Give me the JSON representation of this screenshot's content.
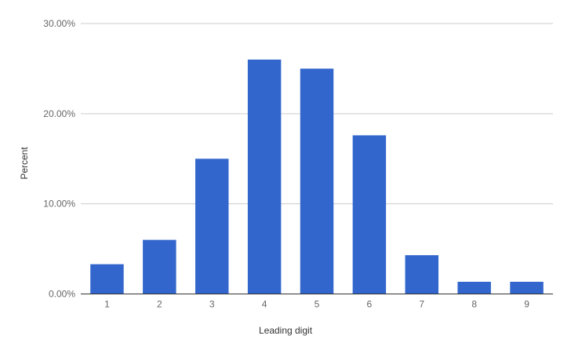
{
  "chart_data": {
    "type": "bar",
    "title": "",
    "xlabel": "Leading digit",
    "ylabel": "Percent",
    "categories": [
      "1",
      "2",
      "3",
      "4",
      "5",
      "6",
      "7",
      "8",
      "9"
    ],
    "values": [
      3.3,
      6.0,
      15.0,
      26.0,
      25.0,
      17.6,
      4.3,
      1.35,
      1.35
    ],
    "ylim": [
      0,
      30
    ],
    "yticks": [
      0,
      10,
      20,
      30
    ],
    "ytick_labels": [
      "0.00%",
      "10.00%",
      "20.00%",
      "30.00%"
    ],
    "grid": true,
    "legend": "none",
    "bar_color": "#3366cc",
    "grid_color": "#cccccc",
    "baseline_color": "#333333"
  }
}
